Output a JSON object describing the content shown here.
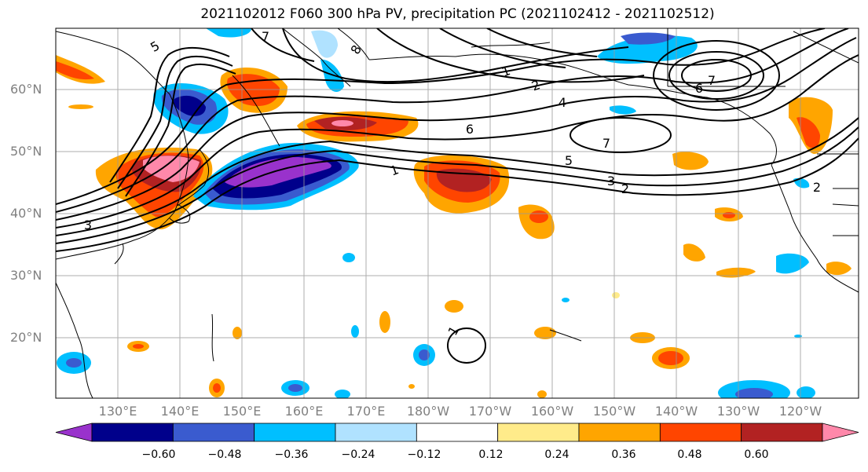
{
  "title": "2021102012 F060 300 hPa PV, precipitation PC (2021102412 - 2021102512)",
  "lat_labels": [
    "60°N",
    "50°N",
    "40°N",
    "30°N",
    "20°N"
  ],
  "lon_labels": [
    "130°E",
    "140°E",
    "150°E",
    "160°E",
    "170°E",
    "180°W",
    "170°W",
    "160°W",
    "150°W",
    "140°W",
    "130°W",
    "120°W"
  ],
  "colorbar": {
    "colors": [
      "#9932CC",
      "#00008B",
      "#3A5BCF",
      "#00BFFF",
      "#B0E2FF",
      "#FFFFFF",
      "#FFEB8A",
      "#FFA500",
      "#FF4500",
      "#B22222",
      "#FF88AA"
    ],
    "tick_labels": [
      "−0.60",
      "−0.48",
      "−0.36",
      "−0.24",
      "−0.12",
      "0.12",
      "0.24",
      "0.36",
      "0.48",
      "0.60"
    ]
  },
  "contour_labels": [
    "5",
    "7",
    "8",
    "1",
    "2",
    "4",
    "6",
    "7",
    "5",
    "3",
    "2",
    "1",
    "6",
    "7",
    "3",
    "1",
    "2"
  ]
}
